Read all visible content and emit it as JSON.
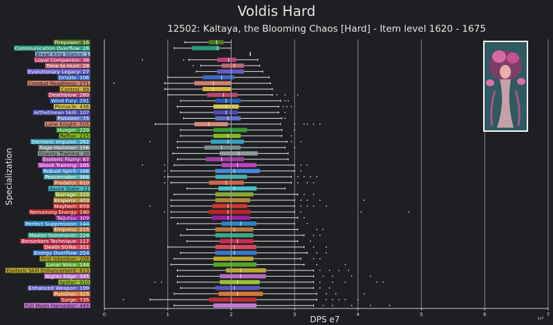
{
  "title": "Voldis Hard",
  "subtitle": "12502: Kaltaya, the Blooming Chaos [Hard] - Item level 1620 - 1675",
  "chart_data": {
    "type": "box",
    "orientation": "horizontal",
    "title": "Voldis Hard",
    "subtitle": "12502: Kaltaya, the Blooming Chaos [Hard] - Item level 1620 - 1675",
    "xlabel": "DPS e7",
    "ylabel": "Specialization",
    "xlim": [
      0,
      7
    ],
    "xticks": [
      "0",
      "1",
      "2",
      "3",
      "4",
      "5",
      "6",
      "7"
    ],
    "x_offset_label": "1e7",
    "grid": "x-major",
    "reference_line": 2.0,
    "series": [
      {
        "label": "Firepower: 16",
        "color": "#4e7a1e",
        "whislo": 1.27,
        "q1": 1.65,
        "med": 1.77,
        "q3": 1.88,
        "whishi": 2.0,
        "fliers": []
      },
      {
        "label": "Communication Overflow: 26",
        "color": "#2a9a7a",
        "whislo": 1.1,
        "q1": 1.38,
        "med": 1.78,
        "q3": 1.82,
        "whishi": 2.0,
        "fliers": []
      },
      {
        "label": "Brawl King Stance: 1",
        "color": "#8ab4e0",
        "whislo": 2.3,
        "q1": 2.3,
        "med": 2.3,
        "q3": 2.3,
        "whishi": 2.3,
        "fliers": []
      },
      {
        "label": "Loyal Companion: 38",
        "color": "#c04080",
        "whislo": 1.33,
        "q1": 1.78,
        "med": 1.96,
        "q3": 2.08,
        "whishi": 2.42,
        "fliers": [
          0.6,
          1.25
        ]
      },
      {
        "label": "Time to Hunt: 28",
        "color": "#c06870",
        "whislo": 1.52,
        "q1": 1.85,
        "med": 2.05,
        "q3": 2.2,
        "whishi": 2.45,
        "fliers": [
          1.4
        ]
      },
      {
        "label": "Evolutionary Legacy: 27",
        "color": "#6a5ac8",
        "whislo": 1.45,
        "q1": 1.78,
        "med": 2.0,
        "q3": 2.2,
        "whishi": 2.5,
        "fliers": []
      },
      {
        "label": "Drizzle: 106",
        "color": "#3a6ac0",
        "whislo": 1.0,
        "q1": 1.55,
        "med": 1.85,
        "q3": 2.05,
        "whishi": 2.6,
        "fliers": []
      },
      {
        "label": "Combat Readiness: 271",
        "color": "#d08070",
        "whislo": 0.95,
        "q1": 1.42,
        "med": 1.72,
        "q3": 2.0,
        "whishi": 2.62,
        "fliers": [
          0.15
        ]
      },
      {
        "label": "Control: 89",
        "color": "#d8b840",
        "whislo": 0.95,
        "q1": 1.55,
        "med": 1.72,
        "q3": 2.0,
        "whishi": 2.65,
        "fliers": []
      },
      {
        "label": "Deathblow: 280",
        "color": "#b84870",
        "whislo": 1.0,
        "q1": 1.62,
        "med": 1.88,
        "q3": 2.1,
        "whishi": 2.65,
        "fliers": [
          2.72,
          2.85,
          3.05
        ]
      },
      {
        "label": "Wind Fury: 291",
        "color": "#2a5ab8",
        "whislo": 1.2,
        "q1": 1.75,
        "med": 1.92,
        "q3": 2.15,
        "whishi": 2.78,
        "fliers": [
          2.85,
          2.9
        ]
      },
      {
        "label": "Pinnacle: 436",
        "color": "#d8c850",
        "whislo": 1.15,
        "q1": 1.72,
        "med": 1.92,
        "q3": 2.12,
        "whishi": 2.75,
        "fliers": [
          2.82,
          2.88,
          2.95
        ]
      },
      {
        "label": "Arthetinean Skill: 107",
        "color": "#4a4ab0",
        "whislo": 1.2,
        "q1": 1.72,
        "med": 1.92,
        "q3": 2.1,
        "whishi": 2.75,
        "fliers": [
          2.85
        ]
      },
      {
        "label": "Pistoleer: 75",
        "color": "#6070c8",
        "whislo": 1.25,
        "q1": 1.75,
        "med": 1.95,
        "q3": 2.15,
        "whishi": 2.8,
        "fliers": [
          2.85
        ]
      },
      {
        "label": "Lone Knight: 505",
        "color": "#d88878",
        "whislo": 0.8,
        "q1": 1.42,
        "med": 1.65,
        "q3": 1.95,
        "whishi": 2.78,
        "fliers": [
          3.0,
          3.15,
          3.2,
          3.3,
          3.4
        ]
      },
      {
        "label": "Hunger: 229",
        "color": "#3a9a3a",
        "whislo": 1.2,
        "q1": 1.72,
        "med": 2.0,
        "q3": 2.25,
        "whishi": 2.8,
        "fliers": [
          3.0
        ]
      },
      {
        "label": "Reflux: 215",
        "color": "#8ab820",
        "whislo": 1.2,
        "q1": 1.72,
        "med": 1.95,
        "q3": 2.15,
        "whishi": 2.8,
        "fliers": [
          2.95
        ]
      },
      {
        "label": "Demonic Impulse: 262",
        "color": "#3aa0c0",
        "whislo": 1.15,
        "q1": 1.68,
        "med": 1.95,
        "q3": 2.2,
        "whishi": 2.88,
        "fliers": [
          0.72,
          2.95,
          3.1
        ]
      },
      {
        "label": "Rage Hammer: 156",
        "color": "#7a8a90",
        "whislo": 1.15,
        "q1": 1.58,
        "med": 1.85,
        "q3": 2.15,
        "whishi": 2.85,
        "fliers": [
          3.0
        ]
      },
      {
        "label": "Gravity Training: 30",
        "color": "#909a9a",
        "whislo": 1.08,
        "q1": 1.82,
        "med": 2.12,
        "q3": 2.42,
        "whishi": 2.9,
        "fliers": []
      },
      {
        "label": "Esoteric Flurry: 87",
        "color": "#a040a0",
        "whislo": 1.15,
        "q1": 1.6,
        "med": 1.85,
        "q3": 2.2,
        "whishi": 2.9,
        "fliers": []
      },
      {
        "label": "Shock Training: 185",
        "color": "#c040c0",
        "whislo": 1.1,
        "q1": 1.85,
        "med": 2.1,
        "q3": 2.4,
        "whishi": 3.0,
        "fliers": [
          0.6,
          0.95,
          3.1,
          3.2
        ]
      },
      {
        "label": "Robust Spirit: 166",
        "color": "#4a88d8",
        "whislo": 1.05,
        "q1": 1.75,
        "med": 2.05,
        "q3": 2.45,
        "whishi": 3.0,
        "fliers": [
          0.95,
          3.1
        ]
      },
      {
        "label": "Peacemaker: 988",
        "color": "#48b0b0",
        "whislo": 1.0,
        "q1": 1.75,
        "med": 2.0,
        "q3": 2.25,
        "whishi": 2.95,
        "fliers": [
          0.95,
          3.05,
          3.15,
          3.25,
          3.35
        ]
      },
      {
        "label": "Predator: 810",
        "color": "#c86848",
        "whislo": 1.05,
        "q1": 1.65,
        "med": 1.92,
        "q3": 2.2,
        "whishi": 2.95,
        "fliers": [
          0.95,
          3.05,
          3.2,
          3.3
        ]
      },
      {
        "label": "Asura State: 11",
        "color": "#48c0c8",
        "whislo": 1.3,
        "q1": 1.8,
        "med": 2.05,
        "q3": 2.4,
        "whishi": 2.85,
        "fliers": []
      },
      {
        "label": "Barrage: 310",
        "color": "#88a838",
        "whislo": 1.1,
        "q1": 1.75,
        "med": 2.0,
        "q3": 2.35,
        "whishi": 3.05,
        "fliers": [
          3.15,
          3.3
        ]
      },
      {
        "label": "Emperor: 403",
        "color": "#b08838",
        "whislo": 1.05,
        "q1": 1.75,
        "med": 2.0,
        "q3": 2.3,
        "whishi": 3.0,
        "fliers": [
          3.1,
          3.2,
          3.4,
          4.1
        ]
      },
      {
        "label": "Mayhem: 659",
        "color": "#c83838",
        "whislo": 1.05,
        "q1": 1.7,
        "med": 1.95,
        "q3": 2.25,
        "whishi": 3.0,
        "fliers": [
          0.72,
          3.1,
          3.2,
          3.3,
          3.5
        ]
      },
      {
        "label": "Remaining Energy: 190",
        "color": "#b82828",
        "whislo": 1.05,
        "q1": 1.65,
        "med": 1.95,
        "q3": 2.3,
        "whishi": 3.0,
        "fliers": [
          0.95,
          3.1,
          4.05,
          4.8
        ]
      },
      {
        "label": "Taijutsu: 309",
        "color": "#9a20a0",
        "whislo": 1.05,
        "q1": 1.7,
        "med": 1.95,
        "q3": 2.3,
        "whishi": 3.05,
        "fliers": [
          3.15
        ]
      },
      {
        "label": "Perfect Suppression: 144",
        "color": "#2a88c8",
        "whislo": 1.15,
        "q1": 1.85,
        "med": 2.15,
        "q3": 2.4,
        "whishi": 3.0,
        "fliers": [
          3.2
        ]
      },
      {
        "label": "Empress: 215",
        "color": "#b87840",
        "whislo": 1.3,
        "q1": 1.75,
        "med": 2.05,
        "q3": 2.35,
        "whishi": 3.05,
        "fliers": [
          3.35,
          3.45
        ]
      },
      {
        "label": "Master Summoner: 224",
        "color": "#38a888",
        "whislo": 1.2,
        "q1": 1.75,
        "med": 2.0,
        "q3": 2.35,
        "whishi": 3.15,
        "fliers": [
          3.3,
          3.4
        ]
      },
      {
        "label": "Berserkers Technique: 117",
        "color": "#c83050",
        "whislo": 1.3,
        "q1": 1.82,
        "med": 2.1,
        "q3": 2.35,
        "whishi": 3.05,
        "fliers": [
          3.25
        ]
      },
      {
        "label": "Death Strike: 311",
        "color": "#d84858",
        "whislo": 1.0,
        "q1": 1.75,
        "med": 2.05,
        "q3": 2.4,
        "whishi": 3.15,
        "fliers": [
          3.3,
          3.5
        ]
      },
      {
        "label": "Energy Overflow: 254",
        "color": "#3a78c8",
        "whislo": 1.2,
        "q1": 1.75,
        "med": 2.05,
        "q3": 2.4,
        "whishi": 3.2,
        "fliers": [
          3.35,
          3.5
        ]
      },
      {
        "label": "First Intention: 208",
        "color": "#b8a830",
        "whislo": 1.1,
        "q1": 1.72,
        "med": 2.0,
        "q3": 2.35,
        "whishi": 3.1,
        "fliers": [
          3.3,
          3.4
        ]
      },
      {
        "label": "Lunar Voice: 144",
        "color": "#58a828",
        "whislo": 1.05,
        "q1": 1.72,
        "med": 2.0,
        "q3": 2.4,
        "whishi": 3.15,
        "fliers": [
          3.35,
          3.8
        ]
      },
      {
        "label": "Esoteric Skill Enhancement: 613",
        "color": "#b8a830",
        "whislo": 1.15,
        "q1": 1.92,
        "med": 2.15,
        "q3": 2.55,
        "whishi": 3.3,
        "fliers": [
          3.4,
          3.55,
          3.7,
          3.85
        ]
      },
      {
        "label": "Nights Edge: 345",
        "color": "#b868c8",
        "whislo": 1.15,
        "q1": 1.82,
        "med": 2.15,
        "q3": 2.55,
        "whishi": 3.3,
        "fliers": [
          3.45,
          3.6,
          3.9,
          4.2
        ]
      },
      {
        "label": "Igniter: 910",
        "color": "#98c030",
        "whislo": 1.15,
        "q1": 1.82,
        "med": 2.1,
        "q3": 2.45,
        "whishi": 3.3,
        "fliers": [
          0.8,
          0.9,
          3.4,
          3.6,
          3.8,
          4.3,
          4.4
        ]
      },
      {
        "label": "Enhanced Weapon: 199",
        "color": "#5858b8",
        "whislo": 1.2,
        "q1": 1.75,
        "med": 2.05,
        "q3": 2.45,
        "whishi": 3.3,
        "fliers": [
          3.4,
          3.55
        ]
      },
      {
        "label": "Punisher: 325",
        "color": "#d87838",
        "whislo": 1.1,
        "q1": 1.8,
        "med": 2.1,
        "q3": 2.5,
        "whishi": 3.35,
        "fliers": [
          3.5,
          3.65,
          4.1
        ]
      },
      {
        "label": "Surge: 735",
        "color": "#b83030",
        "whislo": 0.72,
        "q1": 1.65,
        "med": 2.0,
        "q3": 2.4,
        "whishi": 3.35,
        "fliers": [
          0.3,
          3.5,
          3.6,
          3.7,
          3.8,
          4.0
        ]
      },
      {
        "label": "Full Moon Harvester: 445",
        "color": "#c878d8",
        "whislo": 1.1,
        "q1": 1.72,
        "med": 2.0,
        "q3": 2.4,
        "whishi": 3.3,
        "fliers": [
          3.45,
          3.6,
          3.9,
          4.2,
          4.5
        ]
      }
    ]
  }
}
